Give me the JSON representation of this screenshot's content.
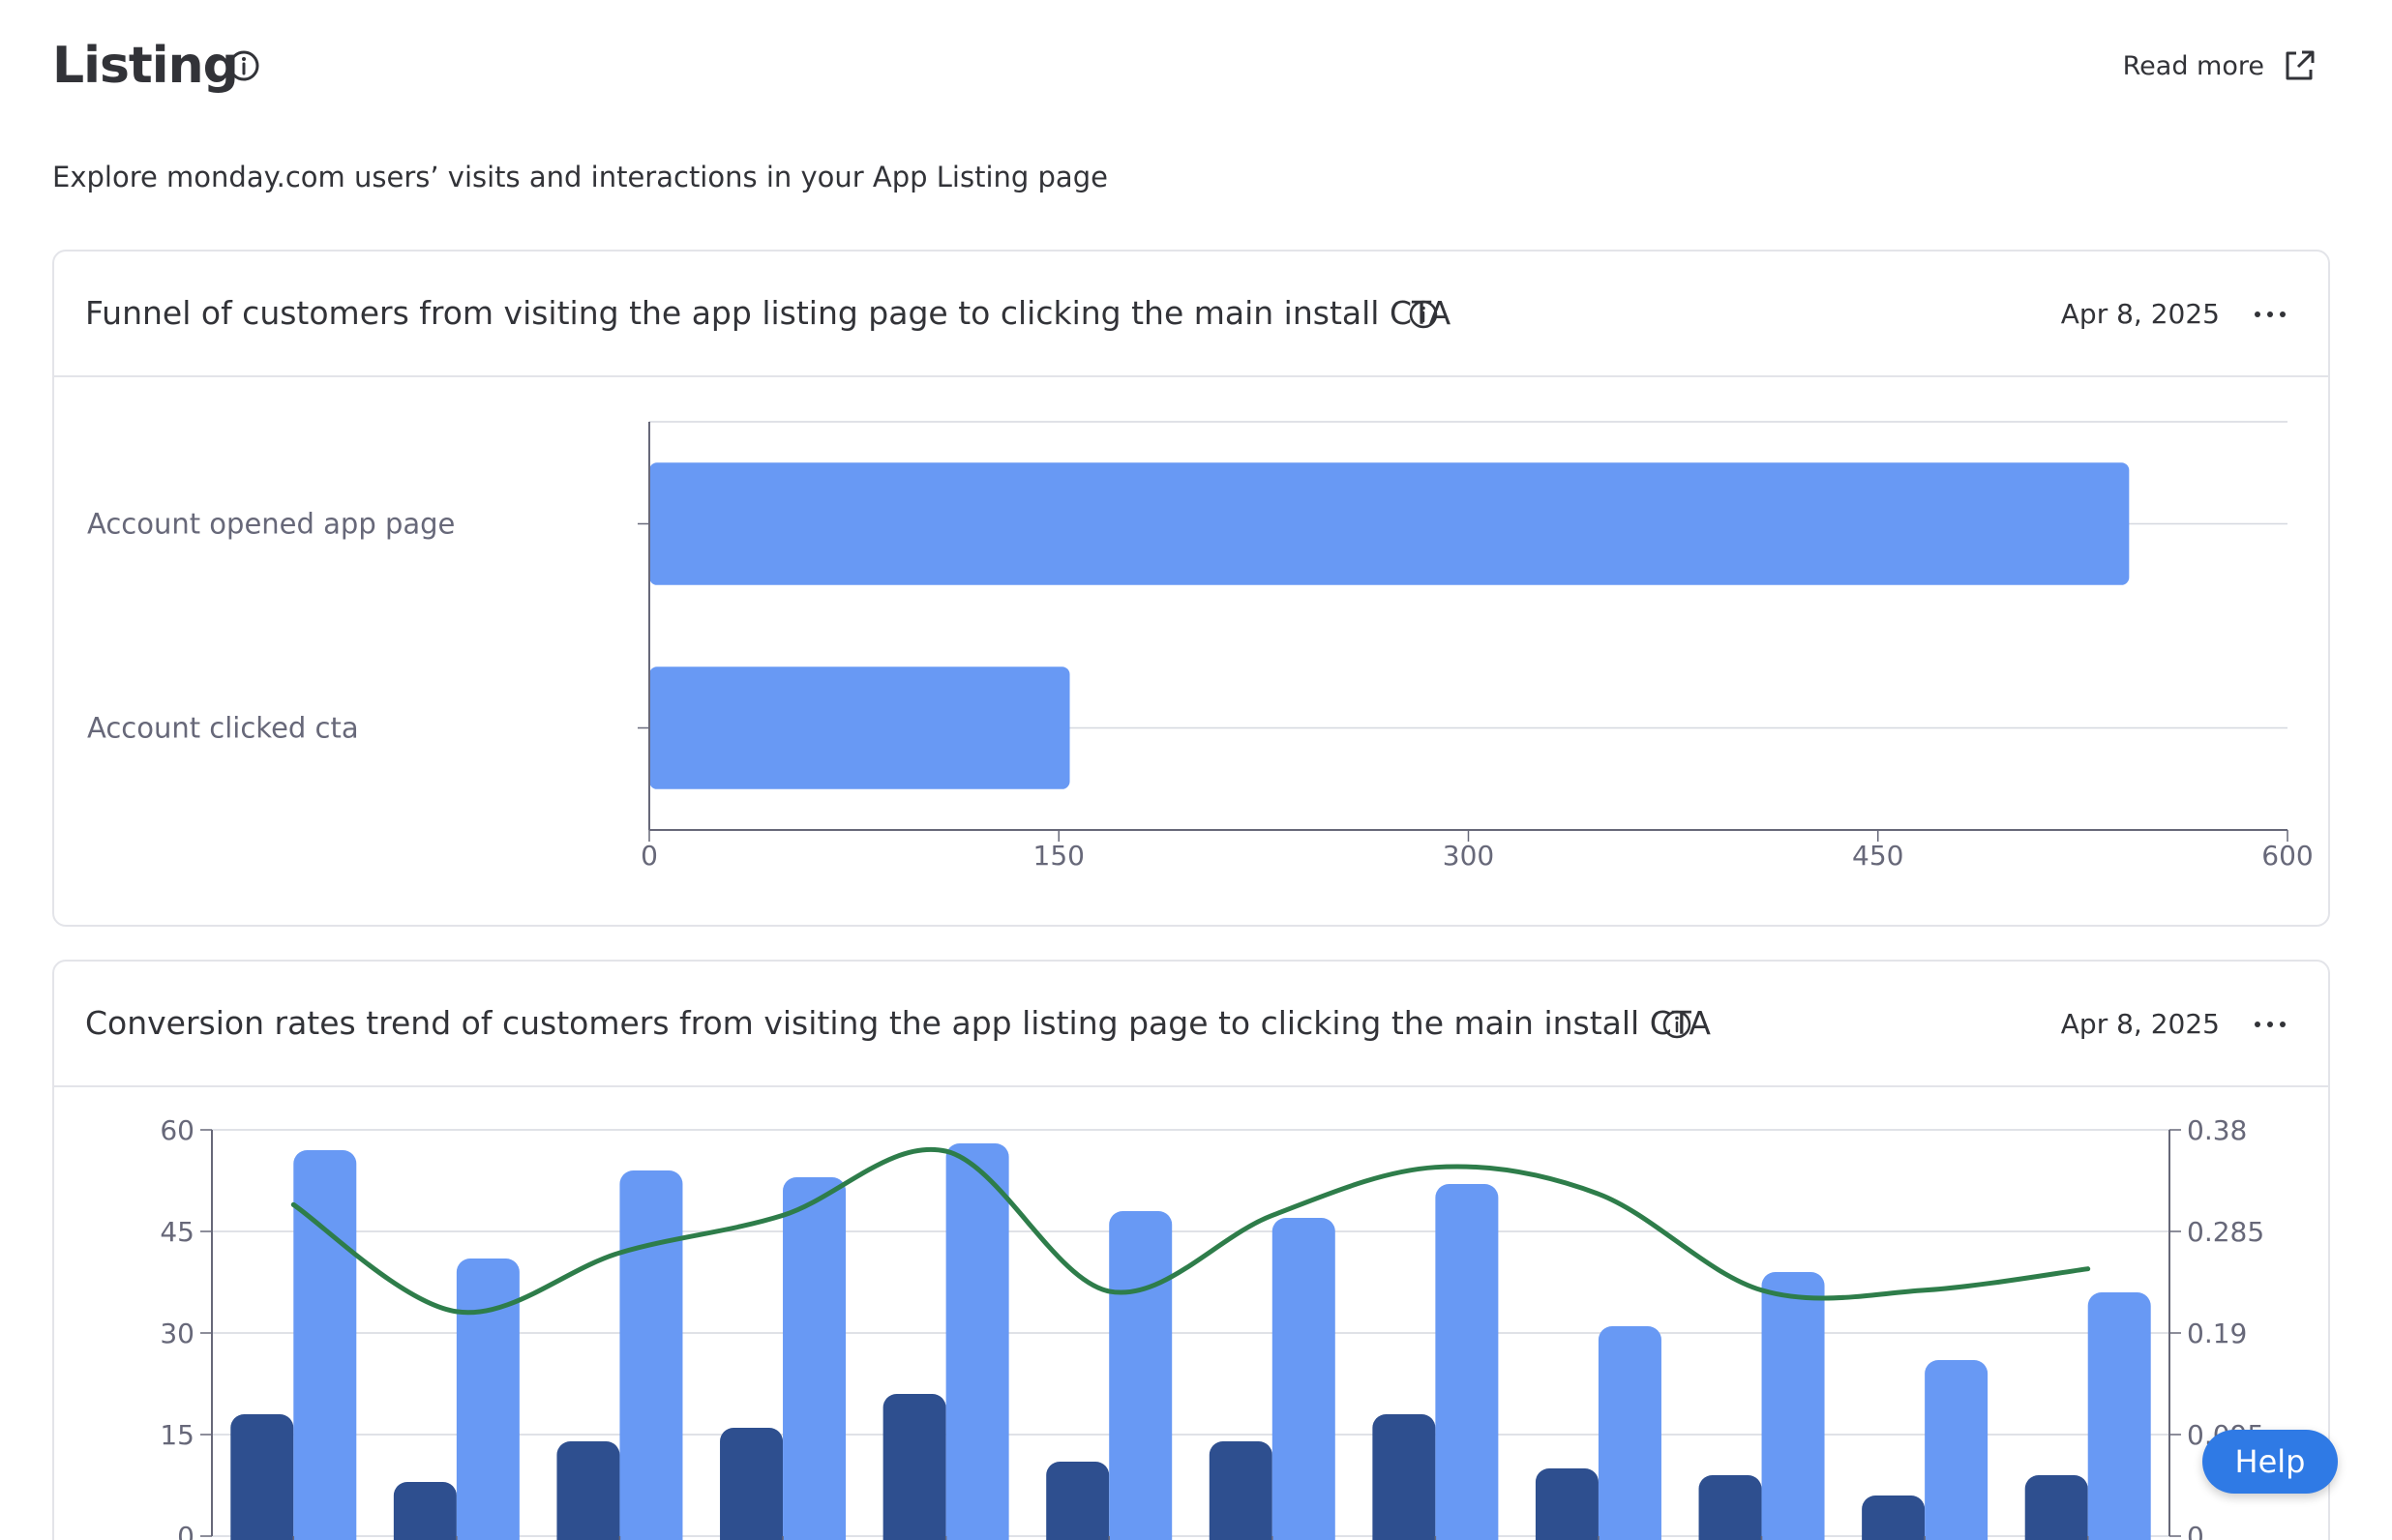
{
  "header": {
    "title": "Listing",
    "read_more_label": "Read more"
  },
  "subtitle": "Explore monday.com users’ visits and interactions in your App Listing page",
  "funnel_card": {
    "title": "Funnel of customers from visiting the app listing page to clicking the main install CTA",
    "date": "Apr 8, 2025"
  },
  "conversion_card": {
    "title": "Conversion rates trend of customers from visiting the app listing page to clicking the main install CTA",
    "date": "Apr 8, 2025"
  },
  "help_label": "Help",
  "colors": {
    "bar_light": "#6899f4",
    "bar_dark": "#2e4f8f",
    "line": "#2e7d4a",
    "help": "#2f7ae5"
  },
  "chart_data": [
    {
      "type": "bar",
      "orientation": "horizontal",
      "categories": [
        "Account opened app page",
        "Account clicked cta"
      ],
      "values": [
        542,
        154
      ],
      "xlim": [
        0,
        600
      ],
      "xticks": [
        "0",
        "150",
        "300",
        "450",
        "600"
      ],
      "grid": true
    },
    {
      "type": "bar",
      "secondary_type": "line",
      "series": [
        {
          "values": [
            18,
            8,
            14,
            16,
            21,
            11,
            14,
            18,
            10,
            9,
            6,
            9
          ]
        },
        {
          "values": [
            57,
            41,
            54,
            53,
            58,
            48,
            47,
            52,
            31,
            39,
            26,
            36
          ]
        },
        {
          "axis": "right",
          "values": [
            0.31,
            0.21,
            0.265,
            0.3,
            0.36,
            0.229,
            0.3,
            0.345,
            0.32,
            0.23,
            0.23,
            0.25
          ]
        }
      ],
      "ylim": [
        0,
        60
      ],
      "yticks": [
        "0",
        "15",
        "30",
        "45",
        "60"
      ],
      "y2lim": [
        0,
        0.38
      ],
      "y2ticks": [
        "0",
        "0.095",
        "0.19",
        "0.285",
        "0.38"
      ],
      "grid": true
    }
  ]
}
